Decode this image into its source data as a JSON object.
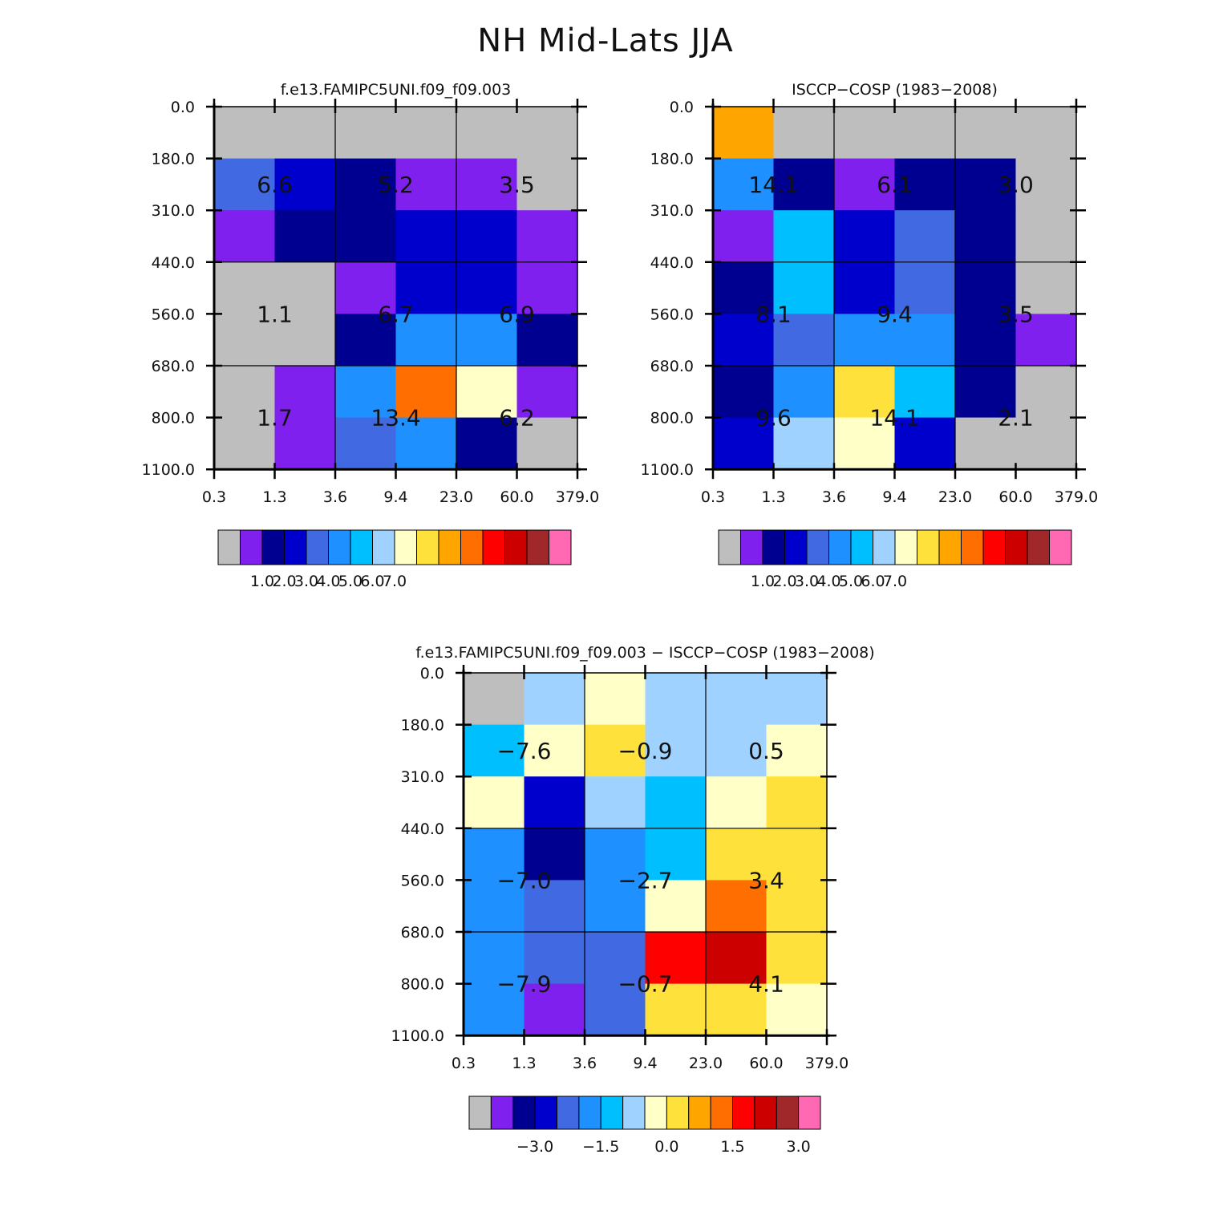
{
  "title": "NH Mid-Lats JJA",
  "palette": {
    "0": "#BEBEBE",
    "1": "#8020EE",
    "2": "#000090",
    "3": "#0000CD",
    "4": "#4169E1",
    "5": "#1E90FF",
    "6": "#00BFFF",
    "7": "#A0D2FF",
    "8": "#FFFFC8",
    "9": "#FFE13C",
    "10": "#FFA500",
    "11": "#FF6E00",
    "12": "#FF0000",
    "13": "#CD0000",
    "14": "#A0282A",
    "15": "#FF69B4"
  },
  "chart_data": [
    {
      "type": "heatmap",
      "title": "f.e13.FAMIPC5UNI.f09_f09.003",
      "x_ticks": [
        "0.3",
        "1.3",
        "3.6",
        "9.4",
        "23.0",
        "60.0",
        "379.0"
      ],
      "y_ticks": [
        "0.0",
        "180.0",
        "310.0",
        "440.0",
        "560.0",
        "680.0",
        "800.0",
        "1100.0"
      ],
      "cell_colors": [
        [
          0,
          0,
          0,
          0,
          0,
          0
        ],
        [
          4,
          3,
          2,
          1,
          1,
          0
        ],
        [
          1,
          2,
          2,
          3,
          3,
          1
        ],
        [
          0,
          0,
          1,
          3,
          3,
          1
        ],
        [
          0,
          0,
          2,
          5,
          5,
          2
        ],
        [
          0,
          1,
          5,
          11,
          8,
          1
        ],
        [
          0,
          1,
          4,
          5,
          2,
          0
        ]
      ],
      "group_values": [
        [
          "6.6",
          "5.2",
          "3.5"
        ],
        [
          "1.1",
          "6.7",
          "6.9"
        ],
        [
          "1.7",
          "13.4",
          "6.2"
        ]
      ],
      "colorbar": {
        "labels": [
          "1.0",
          "2.0",
          "3.0",
          "4.0",
          "5.0",
          "6.0",
          "7.0"
        ],
        "colors": [
          0,
          1,
          2,
          3,
          4,
          5,
          6,
          7,
          8,
          9,
          10,
          11,
          12,
          13,
          14,
          15
        ]
      }
    },
    {
      "type": "heatmap",
      "title": "ISCCP-COSP (1983-2008)",
      "x_ticks": [
        "0.3",
        "1.3",
        "3.6",
        "9.4",
        "23.0",
        "60.0",
        "379.0"
      ],
      "y_ticks": [
        "0.0",
        "180.0",
        "310.0",
        "440.0",
        "560.0",
        "680.0",
        "800.0",
        "1100.0"
      ],
      "cell_colors": [
        [
          10,
          0,
          0,
          0,
          0,
          0
        ],
        [
          5,
          2,
          1,
          2,
          2,
          0
        ],
        [
          1,
          6,
          3,
          4,
          2,
          0
        ],
        [
          2,
          6,
          3,
          4,
          2,
          0
        ],
        [
          3,
          4,
          5,
          5,
          2,
          1
        ],
        [
          2,
          5,
          9,
          6,
          2,
          0
        ],
        [
          3,
          7,
          8,
          3,
          0,
          0
        ]
      ],
      "group_values": [
        [
          "14.1",
          "6.1",
          "3.0"
        ],
        [
          "8.1",
          "9.4",
          "3.5"
        ],
        [
          "9.6",
          "14.1",
          "2.1"
        ]
      ],
      "colorbar": {
        "labels": [
          "1.0",
          "2.0",
          "3.0",
          "4.0",
          "5.0",
          "6.0",
          "7.0"
        ],
        "colors": [
          0,
          1,
          2,
          3,
          4,
          5,
          6,
          7,
          8,
          9,
          10,
          11,
          12,
          13,
          14,
          15
        ]
      }
    },
    {
      "type": "heatmap",
      "title": "f.e13.FAMIPC5UNI.f09_f09.003 - ISCCP-COSP (1983-2008)",
      "x_ticks": [
        "0.3",
        "1.3",
        "3.6",
        "9.4",
        "23.0",
        "60.0",
        "379.0"
      ],
      "y_ticks": [
        "0.0",
        "180.0",
        "310.0",
        "440.0",
        "560.0",
        "680.0",
        "800.0",
        "1100.0"
      ],
      "cell_colors": [
        [
          0,
          7,
          8,
          7,
          7,
          7
        ],
        [
          6,
          8,
          9,
          7,
          7,
          8
        ],
        [
          8,
          3,
          7,
          6,
          8,
          9
        ],
        [
          5,
          2,
          5,
          6,
          9,
          9
        ],
        [
          5,
          4,
          5,
          8,
          11,
          9
        ],
        [
          5,
          4,
          4,
          12,
          13,
          9
        ],
        [
          5,
          1,
          4,
          9,
          9,
          8
        ]
      ],
      "group_values": [
        [
          "-7.6",
          "-0.9",
          "0.5"
        ],
        [
          "-7.0",
          "-2.7",
          "3.4"
        ],
        [
          "-7.9",
          "-0.7",
          "4.1"
        ]
      ],
      "colorbar": {
        "labels": [
          "-3.0",
          "-1.5",
          "0.0",
          "1.5",
          "3.0"
        ],
        "colors": [
          0,
          1,
          2,
          3,
          4,
          5,
          6,
          7,
          8,
          9,
          10,
          11,
          12,
          13,
          14,
          15
        ]
      }
    }
  ]
}
